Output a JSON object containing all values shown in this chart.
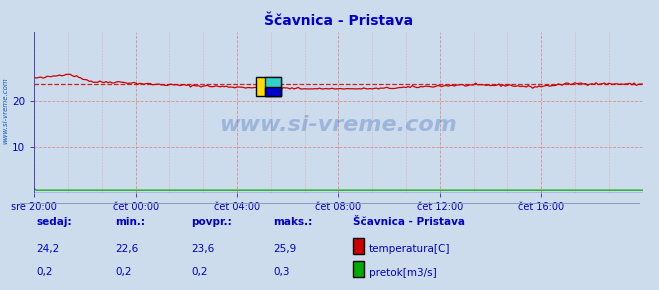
{
  "title": "Ščavnica - Pristava",
  "title_color": "#0000cc",
  "bg_color": "#ccdcec",
  "plot_bg_color": "#ccdcec",
  "axis_color": "#0000cc",
  "grid_color": "#dd8888",
  "x_labels": [
    "sre 20:00",
    "čet 00:00",
    "čet 04:00",
    "čet 08:00",
    "čet 12:00",
    "čet 16:00"
  ],
  "x_ticks": [
    0,
    24,
    48,
    72,
    96,
    120
  ],
  "x_max": 144,
  "y_min": 0,
  "y_max": 35,
  "y_ticks": [
    10,
    20
  ],
  "temp_avg": 23.6,
  "temp_min": 22.6,
  "temp_max": 25.9,
  "temp_current": 24.2,
  "flow_avg": 0.2,
  "flow_min": 0.2,
  "flow_max": 0.3,
  "flow_current": 0.2,
  "temp_color": "#cc0000",
  "flow_color": "#00aa00",
  "avg_line_color": "#cc0000",
  "watermark": "www.si-vreme.com",
  "watermark_color": "#1144aa",
  "left_label": "www.si-vreme.com",
  "left_label_color": "#1155cc",
  "footer_label_color": "#0000cc",
  "footer_value_color": "#0000cc",
  "legend_title": "Ščavnica - Pristava",
  "legend_title_color": "#0000cc",
  "legend_temp_label": "temperatura[C]",
  "legend_flow_label": "pretok[m3/s]",
  "legend_label_color": "#0000cc",
  "left_axis_color": "#3333cc",
  "bottom_axis_color": "#3333cc",
  "arrow_color": "#cc0000"
}
